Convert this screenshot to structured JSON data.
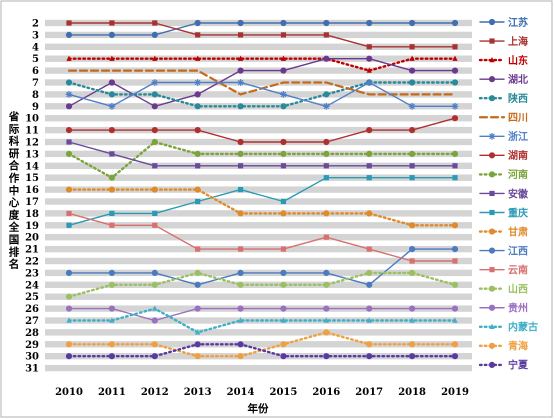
{
  "chart_data": {
    "type": "line",
    "xlabel": "年份",
    "ylabel": "省际科研合作中心度全国排名",
    "x": [
      2010,
      2011,
      2012,
      2013,
      2014,
      2015,
      2016,
      2017,
      2018,
      2019
    ],
    "y_ticks": [
      2,
      3,
      4,
      5,
      6,
      7,
      8,
      9,
      10,
      11,
      12,
      13,
      14,
      15,
      16,
      17,
      18,
      19,
      20,
      21,
      22,
      23,
      24,
      25,
      26,
      27,
      28,
      29,
      30,
      31
    ],
    "ylim": [
      31,
      2
    ],
    "y_inverted": true,
    "grid": "horizontal gray bands",
    "legend_position": "right",
    "series": [
      {
        "name": "江苏",
        "color": "#3f6fb0",
        "dash": "solid",
        "marker": "circle",
        "values": [
          3,
          3,
          3,
          2,
          2,
          2,
          2,
          2,
          2,
          2
        ]
      },
      {
        "name": "上海",
        "color": "#a83232",
        "dash": "solid",
        "marker": "square",
        "values": [
          2,
          2,
          2,
          3,
          3,
          3,
          3,
          4,
          4,
          4
        ]
      },
      {
        "name": "山东",
        "color": "#c00000",
        "dash": "dot",
        "marker": "triangle",
        "values": [
          5,
          5,
          5,
          5,
          5,
          5,
          5,
          6,
          5,
          5
        ]
      },
      {
        "name": "湖北",
        "color": "#6b3a8f",
        "dash": "solid",
        "marker": "circle",
        "values": [
          9,
          7,
          9,
          8,
          6,
          6,
          5,
          5,
          6,
          6
        ]
      },
      {
        "name": "陕西",
        "color": "#2a8a9a",
        "dash": "dot",
        "marker": "circle",
        "values": [
          7,
          8,
          8,
          9,
          9,
          9,
          8,
          7,
          7,
          7
        ]
      },
      {
        "name": "四川",
        "color": "#c56a1b",
        "dash": "dash",
        "marker": "none",
        "values": [
          6,
          6,
          6,
          6,
          8,
          7,
          7,
          8,
          8,
          8
        ]
      },
      {
        "name": "浙江",
        "color": "#4f7fc8",
        "dash": "solid",
        "marker": "star",
        "values": [
          8,
          9,
          7,
          7,
          7,
          8,
          9,
          7,
          9,
          9
        ]
      },
      {
        "name": "湖南",
        "color": "#b03030",
        "dash": "solid",
        "marker": "circle",
        "values": [
          11,
          11,
          11,
          11,
          12,
          12,
          12,
          11,
          11,
          10
        ]
      },
      {
        "name": "河南",
        "color": "#7aa53a",
        "dash": "dot",
        "marker": "circle",
        "values": [
          13,
          15,
          12,
          13,
          13,
          13,
          13,
          13,
          13,
          13
        ]
      },
      {
        "name": "安徽",
        "color": "#6a4a9a",
        "dash": "solid",
        "marker": "square",
        "values": [
          12,
          13,
          14,
          14,
          14,
          14,
          14,
          14,
          14,
          14
        ]
      },
      {
        "name": "重庆",
        "color": "#2a9ab5",
        "dash": "solid",
        "marker": "square",
        "values": [
          19,
          18,
          18,
          17,
          16,
          17,
          15,
          15,
          15,
          15
        ]
      },
      {
        "name": "甘肃",
        "color": "#e08a2a",
        "dash": "dot",
        "marker": "circle",
        "values": [
          16,
          16,
          16,
          16,
          18,
          18,
          18,
          18,
          19,
          19
        ]
      },
      {
        "name": "江西",
        "color": "#4a7ac0",
        "dash": "solid",
        "marker": "circle",
        "values": [
          23,
          23,
          23,
          24,
          23,
          23,
          23,
          24,
          21,
          21
        ]
      },
      {
        "name": "云南",
        "color": "#d87070",
        "dash": "solid",
        "marker": "square",
        "values": [
          18,
          19,
          19,
          21,
          21,
          21,
          20,
          21,
          22,
          22
        ]
      },
      {
        "name": "山西",
        "color": "#9ac060",
        "dash": "dot",
        "marker": "circle",
        "values": [
          25,
          24,
          24,
          23,
          24,
          24,
          24,
          23,
          23,
          24
        ]
      },
      {
        "name": "贵州",
        "color": "#9a70c0",
        "dash": "solid",
        "marker": "circle",
        "values": [
          26,
          26,
          27,
          26,
          26,
          26,
          26,
          26,
          26,
          26
        ]
      },
      {
        "name": "内蒙古",
        "color": "#40b0c8",
        "dash": "dot",
        "marker": "triangle",
        "values": [
          27,
          27,
          26,
          28,
          27,
          27,
          27,
          27,
          27,
          27
        ]
      },
      {
        "name": "青海",
        "color": "#f0a040",
        "dash": "dot",
        "marker": "circle",
        "values": [
          29,
          29,
          29,
          30,
          30,
          29,
          28,
          29,
          29,
          29
        ]
      },
      {
        "name": "宁夏",
        "color": "#5a3aa0",
        "dash": "dot",
        "marker": "circle",
        "values": [
          30,
          30,
          30,
          29,
          29,
          30,
          30,
          30,
          30,
          30
        ]
      }
    ]
  }
}
